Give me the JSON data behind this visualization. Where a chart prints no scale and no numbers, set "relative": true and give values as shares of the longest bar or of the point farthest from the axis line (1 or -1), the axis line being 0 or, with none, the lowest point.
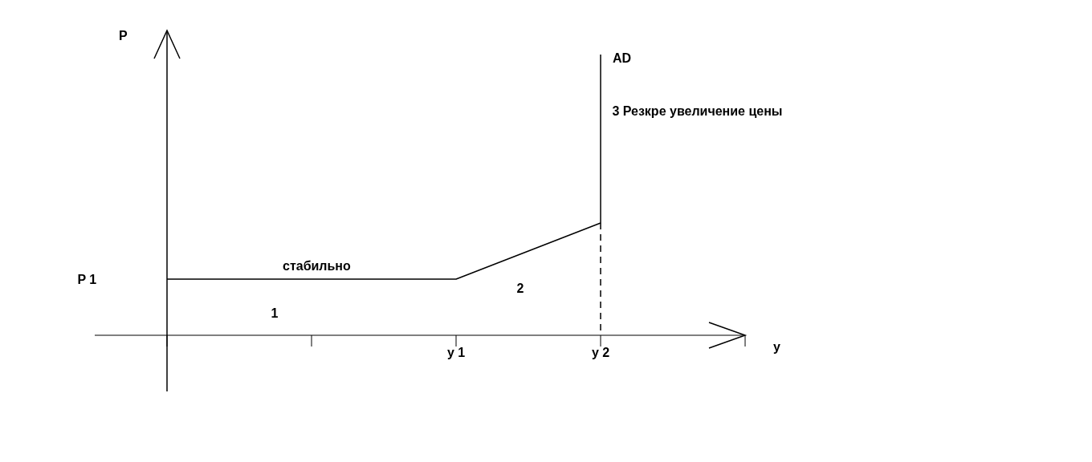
{
  "chart_data": {
    "type": "line",
    "relative": true,
    "xlabel": "y",
    "ylabel": "P",
    "categories": [
      null,
      null,
      "y 1",
      "y 2",
      null
    ],
    "series": [
      {
        "color": "#000000",
        "values": [
          0.2,
          0.2,
          0.2,
          0.4,
          null
        ]
      },
      {
        "name": "AD",
        "color": "#000000",
        "x": [
          "y 2",
          "y 2"
        ],
        "values": [
          0.4,
          1
        ]
      },
      {
        "color": "#000000",
        "line_style": "dashed",
        "x": [
          "y 2",
          "y 2"
        ],
        "values": [
          0.4,
          0
        ]
      }
    ],
    "annotations": [
      "P 1",
      "стабильно",
      "1",
      "2",
      "3  Резкре увеличение цены"
    ],
    "marker": "none",
    "line_style": "solid"
  }
}
